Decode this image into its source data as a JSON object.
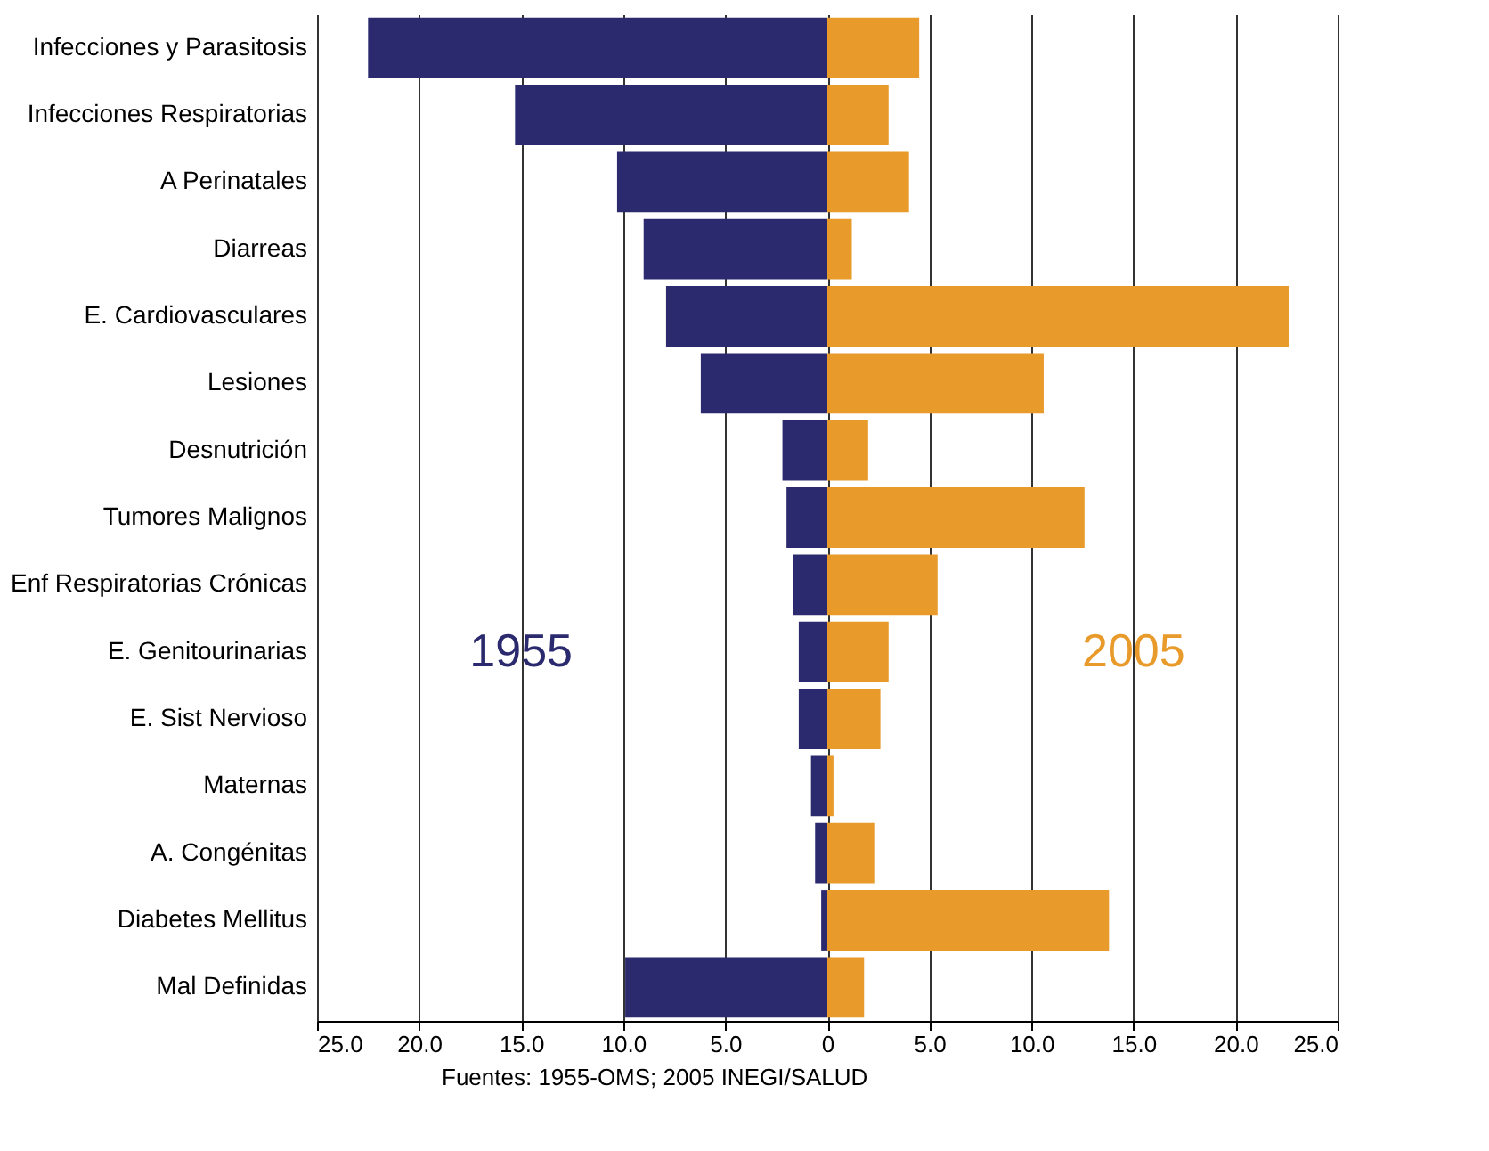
{
  "chart_data": {
    "type": "bar",
    "orientation": "horizontal",
    "categories": [
      "Infecciones y Parasitosis",
      "Infecciones Respiratorias",
      "A Perinatales",
      "Diarreas",
      "E. Cardiovasculares",
      "Lesiones",
      "Desnutrición",
      "Tumores Malignos",
      "Enf Respiratorias Crónicas",
      "E. Genitourinarias",
      "E. Sist Nervioso",
      "Maternas",
      "A. Congénitas",
      "Diabetes Mellitus",
      "Mal Definidas"
    ],
    "series": [
      {
        "name": "1955",
        "color": "#2b2a6e",
        "values": [
          -22.5,
          -15.3,
          -10.3,
          -9.0,
          -7.9,
          -6.2,
          -2.2,
          -2.0,
          -1.7,
          -1.4,
          -1.4,
          -0.8,
          -0.6,
          -0.3,
          -9.9
        ]
      },
      {
        "name": "2005",
        "color": "#e89a2b",
        "values": [
          4.5,
          3.0,
          4.0,
          1.2,
          22.6,
          10.6,
          2.0,
          12.6,
          5.4,
          3.0,
          2.6,
          0.3,
          2.3,
          13.8,
          1.8
        ]
      }
    ],
    "xlim": [
      -25,
      25
    ],
    "xticks": [
      {
        "value": -25,
        "label": "25.0"
      },
      {
        "value": -20,
        "label": "20.0"
      },
      {
        "value": -15,
        "label": "15.0"
      },
      {
        "value": -10,
        "label": "10.0"
      },
      {
        "value": -5,
        "label": "5.0"
      },
      0,
      {
        "value": 5,
        "label": "5.0"
      },
      {
        "value": 10,
        "label": "10.0"
      },
      {
        "value": 15,
        "label": "15.0"
      },
      {
        "value": 20,
        "label": "20.0"
      },
      {
        "value": 25,
        "label": "25.0"
      }
    ],
    "grid": "x",
    "stacked": true,
    "annotations": [
      "Fuentes: 1955-OMS; 2005 INEGI/SALUD"
    ]
  }
}
